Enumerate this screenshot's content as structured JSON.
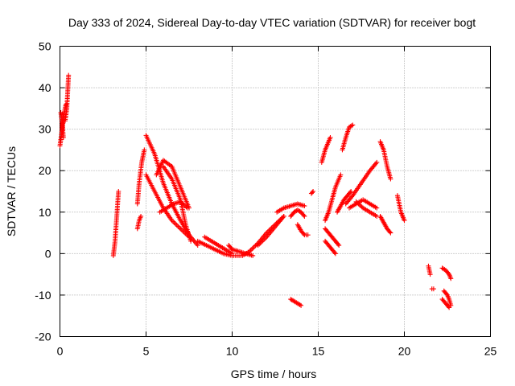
{
  "chart_data": {
    "type": "scatter",
    "title": "Day 333 of 2024, Sidereal Day-to-day VTEC variation (SDTVAR) for receiver bogt",
    "xlabel": "GPS time / hours",
    "ylabel": "SDTVAR / TECUs",
    "xlim": [
      0,
      25
    ],
    "ylim": [
      -20,
      50
    ],
    "xticks": [
      0,
      5,
      10,
      15,
      20,
      25
    ],
    "yticks": [
      -20,
      -10,
      0,
      10,
      20,
      30,
      40,
      50
    ],
    "xtick_labels": [
      "0",
      "5",
      "10",
      "15",
      "20",
      "25"
    ],
    "ytick_labels": [
      "-20",
      "-10",
      "0",
      "10",
      "20",
      "30",
      "40",
      "50"
    ],
    "grid": true,
    "marker": "+",
    "color": "#ff0000",
    "series": [
      {
        "name": "s01",
        "x": [
          0.0,
          0.1,
          0.2,
          0.3,
          0.35
        ],
        "y": [
          26,
          29,
          33,
          35,
          36
        ]
      },
      {
        "name": "s02",
        "x": [
          0.05,
          0.12,
          0.2
        ],
        "y": [
          34,
          32,
          28
        ]
      },
      {
        "name": "s03",
        "x": [
          0.3,
          0.4,
          0.45,
          0.5
        ],
        "y": [
          32,
          35,
          39,
          43
        ]
      },
      {
        "name": "s04",
        "x": [
          3.1,
          3.2,
          3.3,
          3.4
        ],
        "y": [
          -0.5,
          3,
          9,
          15
        ]
      },
      {
        "name": "s05",
        "x": [
          4.5,
          4.6,
          4.7
        ],
        "y": [
          6,
          8,
          9
        ]
      },
      {
        "name": "s06",
        "x": [
          4.5,
          4.6,
          4.75,
          4.9
        ],
        "y": [
          12,
          17,
          22,
          25
        ]
      },
      {
        "name": "s07",
        "x": [
          5.0,
          5.5,
          6.0,
          6.5,
          7.0,
          7.5,
          8.0
        ],
        "y": [
          28.5,
          24,
          17,
          12,
          8,
          4.5,
          2
        ]
      },
      {
        "name": "s08",
        "x": [
          5.0,
          5.5,
          6.0,
          6.5,
          7.0,
          7.5
        ],
        "y": [
          19,
          15,
          11,
          8,
          6,
          4
        ]
      },
      {
        "name": "s09",
        "x": [
          5.6,
          6.0,
          6.5,
          7.0,
          7.5
        ],
        "y": [
          19,
          22.5,
          21,
          16,
          11
        ]
      },
      {
        "name": "s10",
        "x": [
          5.8,
          6.2,
          6.6,
          7.0,
          7.4
        ],
        "y": [
          10,
          11,
          12,
          12.5,
          11
        ]
      },
      {
        "name": "s11",
        "x": [
          6.0,
          6.5,
          7.0,
          7.3,
          7.6
        ],
        "y": [
          21,
          18,
          13,
          7,
          3
        ]
      },
      {
        "name": "s12",
        "x": [
          8.0,
          8.5,
          9.0,
          9.5,
          10.0,
          10.5
        ],
        "y": [
          3,
          2,
          1,
          0,
          -0.5,
          -0.5
        ]
      },
      {
        "name": "s13",
        "x": [
          8.4,
          8.8,
          9.2,
          9.6,
          10.0
        ],
        "y": [
          4,
          3,
          2,
          1,
          0
        ]
      },
      {
        "name": "s14",
        "x": [
          9.8,
          10.0,
          10.4,
          10.8,
          11.2
        ],
        "y": [
          2,
          1,
          0.5,
          0,
          -0.5
        ]
      },
      {
        "name": "s15",
        "x": [
          10.6,
          11.0,
          11.5,
          12.0,
          12.5,
          13.0
        ],
        "y": [
          -0.5,
          0.5,
          2.5,
          5,
          7,
          9
        ]
      },
      {
        "name": "s16",
        "x": [
          11.5,
          12.0,
          12.5,
          13.0
        ],
        "y": [
          2,
          4,
          6.5,
          9
        ]
      },
      {
        "name": "s17",
        "x": [
          12.6,
          13.0,
          13.4,
          13.8,
          14.2
        ],
        "y": [
          10,
          11,
          11.5,
          12,
          11.5
        ]
      },
      {
        "name": "s18",
        "x": [
          13.4,
          13.6,
          13.8,
          14.0,
          14.2
        ],
        "y": [
          9,
          10,
          10.5,
          10,
          9
        ]
      },
      {
        "name": "s19",
        "x": [
          13.8,
          14.0,
          14.2,
          14.4
        ],
        "y": [
          7,
          5.5,
          4.5,
          4.5
        ]
      },
      {
        "name": "s20",
        "x": [
          13.4,
          13.6,
          13.8,
          14.0
        ],
        "y": [
          -11,
          -11.5,
          -12,
          -12.5
        ]
      },
      {
        "name": "s21",
        "x": [
          14.6,
          14.7
        ],
        "y": [
          14.5,
          15
        ]
      },
      {
        "name": "s22",
        "x": [
          15.2,
          15.4,
          15.6,
          15.7
        ],
        "y": [
          22,
          25,
          27,
          28
        ]
      },
      {
        "name": "s23",
        "x": [
          15.4,
          15.6,
          15.8,
          16.0,
          16.3
        ],
        "y": [
          8,
          10,
          13,
          16,
          19
        ]
      },
      {
        "name": "s24",
        "x": [
          15.4,
          15.6,
          15.8,
          16.0,
          16.2
        ],
        "y": [
          6,
          5,
          4,
          3,
          2
        ]
      },
      {
        "name": "s25",
        "x": [
          15.4,
          15.6,
          15.8,
          16.0
        ],
        "y": [
          3,
          2,
          1,
          0
        ]
      },
      {
        "name": "s26",
        "x": [
          16.1,
          16.3,
          16.5,
          16.7,
          16.9
        ],
        "y": [
          10,
          11.5,
          13,
          14,
          15
        ]
      },
      {
        "name": "s27",
        "x": [
          16.4,
          16.6,
          16.8,
          17.0
        ],
        "y": [
          25,
          28,
          30.5,
          31
        ]
      },
      {
        "name": "s28",
        "x": [
          16.6,
          17.0,
          17.5,
          18.0,
          18.4
        ],
        "y": [
          12,
          14,
          17,
          20,
          22
        ]
      },
      {
        "name": "s29",
        "x": [
          16.8,
          17.2,
          17.6,
          18.0,
          18.4
        ],
        "y": [
          11,
          12,
          13,
          12,
          11
        ]
      },
      {
        "name": "s30",
        "x": [
          17.2,
          17.6,
          18.0,
          18.4
        ],
        "y": [
          12.5,
          11,
          10,
          9
        ]
      },
      {
        "name": "s31",
        "x": [
          18.6,
          18.8,
          19.0,
          19.2
        ],
        "y": [
          27,
          25,
          21,
          18
        ]
      },
      {
        "name": "s32",
        "x": [
          18.6,
          18.8,
          19.0,
          19.2
        ],
        "y": [
          9,
          7.5,
          6,
          5
        ]
      },
      {
        "name": "s33",
        "x": [
          19.6,
          19.7,
          19.8,
          20.0
        ],
        "y": [
          14,
          12,
          10,
          8
        ]
      },
      {
        "name": "s34",
        "x": [
          21.4,
          21.5
        ],
        "y": [
          -3,
          -5
        ]
      },
      {
        "name": "s35",
        "x": [
          21.6,
          21.7
        ],
        "y": [
          -8.5,
          -8.5
        ]
      },
      {
        "name": "s36",
        "x": [
          22.2,
          22.4,
          22.6,
          22.7
        ],
        "y": [
          -3.5,
          -4,
          -5,
          -6
        ]
      },
      {
        "name": "s37",
        "x": [
          22.3,
          22.5,
          22.6,
          22.7
        ],
        "y": [
          -9,
          -10,
          -11,
          -12.5
        ]
      },
      {
        "name": "s38",
        "x": [
          22.2,
          22.4,
          22.6
        ],
        "y": [
          -11,
          -12,
          -13
        ]
      }
    ]
  }
}
